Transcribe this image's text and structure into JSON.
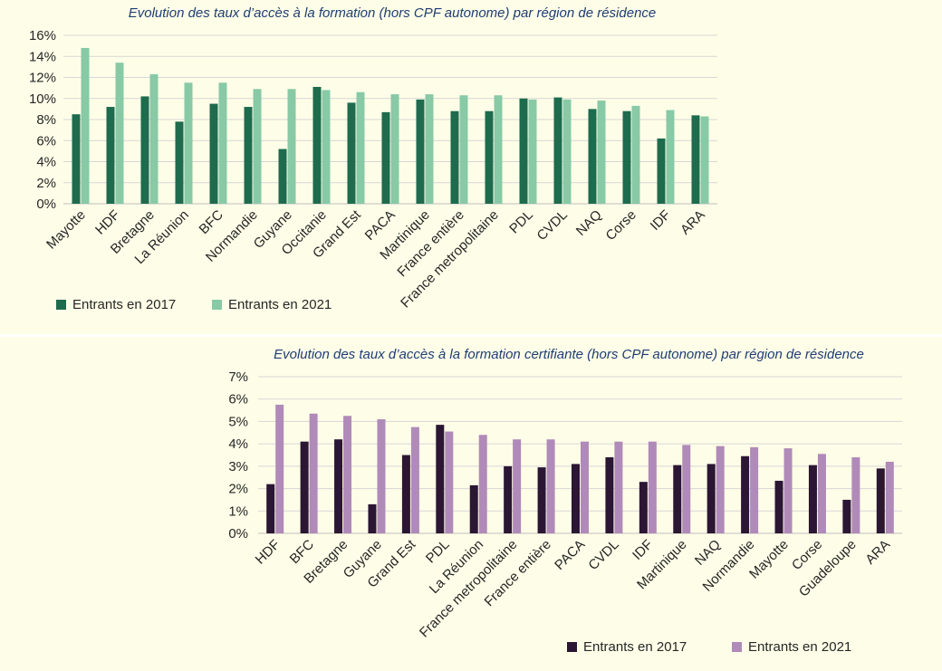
{
  "chart_data": [
    {
      "type": "bar",
      "title": "Evolution des taux d’accès à la formation (hors CPF autonome) par région de résidence",
      "categories": [
        "Mayotte",
        "HDF",
        "Bretagne",
        "La Réunion",
        "BFC",
        "Normandie",
        "Guyane",
        "Occitanie",
        "Grand Est",
        "PACA",
        "Martinique",
        "France entière",
        "France metropolitaine",
        "PDL",
        "CVDL",
        "NAQ",
        "Corse",
        "IDF",
        "ARA"
      ],
      "series": [
        {
          "name": "Entrants en 2017",
          "color": "#1e6b4e",
          "values": [
            8.5,
            9.2,
            10.2,
            7.8,
            9.5,
            9.2,
            5.2,
            11.1,
            9.6,
            8.7,
            9.9,
            8.8,
            8.8,
            10.0,
            10.1,
            9.0,
            8.8,
            6.2,
            8.4
          ]
        },
        {
          "name": "Entrants en 2021",
          "color": "#88c9a6",
          "values": [
            14.8,
            13.4,
            12.3,
            11.5,
            11.5,
            10.9,
            10.9,
            10.8,
            10.6,
            10.4,
            10.4,
            10.3,
            10.3,
            9.9,
            9.9,
            9.8,
            9.3,
            8.9,
            8.3
          ]
        }
      ],
      "ylim": [
        0,
        16
      ],
      "yticks": [
        "0%",
        "2%",
        "4%",
        "6%",
        "8%",
        "10%",
        "12%",
        "14%",
        "16%"
      ],
      "grid": true,
      "legend": "bottom-left"
    },
    {
      "type": "bar",
      "title": "Evolution des taux d’accès à la formation certifiante (hors CPF autonome) par région de résidence",
      "categories": [
        "HDF",
        "BFC",
        "Bretagne",
        "Guyane",
        "Grand Est",
        "PDL",
        "La Réunion",
        "France metropolitaine",
        "France entière",
        "PACA",
        "CVDL",
        "IDF",
        "Martinique",
        "NAQ",
        "Normandie",
        "Mayotte",
        "Corse",
        "Guadeloupe",
        "ARA"
      ],
      "series": [
        {
          "name": "Entrants en 2017",
          "color": "#2b1633",
          "values": [
            2.2,
            4.1,
            4.2,
            1.3,
            3.5,
            4.85,
            2.15,
            3.0,
            2.95,
            3.1,
            3.4,
            2.3,
            3.05,
            3.1,
            3.45,
            2.35,
            3.05,
            1.5,
            2.9
          ]
        },
        {
          "name": "Entrants en 2021",
          "color": "#b08ab8",
          "values": [
            5.75,
            5.35,
            5.25,
            5.1,
            4.75,
            4.55,
            4.4,
            4.2,
            4.2,
            4.1,
            4.1,
            4.1,
            3.95,
            3.9,
            3.85,
            3.8,
            3.55,
            3.4,
            3.2
          ]
        }
      ],
      "ylim": [
        0,
        7
      ],
      "yticks": [
        "0%",
        "1%",
        "2%",
        "3%",
        "4%",
        "5%",
        "6%",
        "7%"
      ],
      "grid": true,
      "legend": "bottom-right"
    }
  ]
}
